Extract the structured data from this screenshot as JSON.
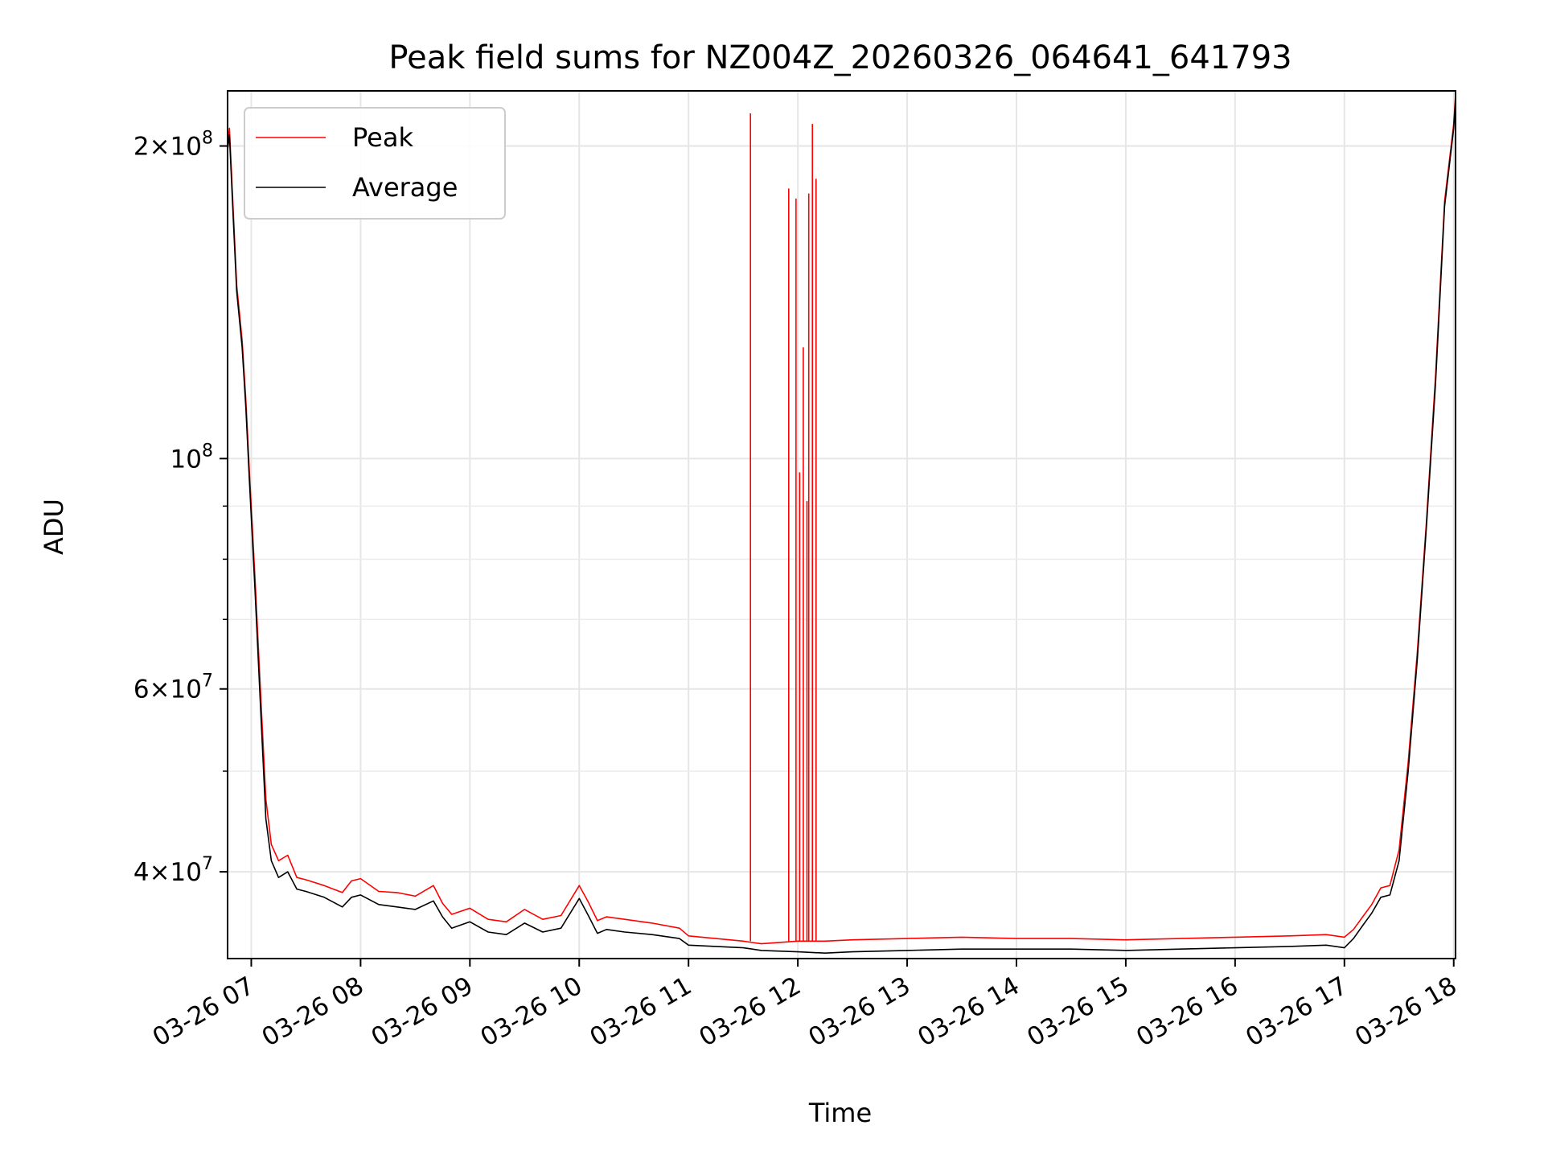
{
  "chart_data": {
    "type": "line",
    "title": "Peak field sums for NZ004Z_20260326_064641_641793",
    "xlabel": "Time",
    "ylabel": "ADU",
    "xlim": [
      "2026-03-26T06:47:00",
      "2026-03-26T18:01:00"
    ],
    "ylim": [
      33000000,
      226000000
    ],
    "yscale": "log",
    "grid": true,
    "legend": "top-left",
    "x_ticks": [
      {
        "t": "2026-03-26T07:00",
        "label": "03-26 07"
      },
      {
        "t": "2026-03-26T08:00",
        "label": "03-26 08"
      },
      {
        "t": "2026-03-26T09:00",
        "label": "03-26 09"
      },
      {
        "t": "2026-03-26T10:00",
        "label": "03-26 10"
      },
      {
        "t": "2026-03-26T11:00",
        "label": "03-26 11"
      },
      {
        "t": "2026-03-26T12:00",
        "label": "03-26 12"
      },
      {
        "t": "2026-03-26T13:00",
        "label": "03-26 13"
      },
      {
        "t": "2026-03-26T14:00",
        "label": "03-26 14"
      },
      {
        "t": "2026-03-26T15:00",
        "label": "03-26 15"
      },
      {
        "t": "2026-03-26T16:00",
        "label": "03-26 16"
      },
      {
        "t": "2026-03-26T17:00",
        "label": "03-26 17"
      },
      {
        "t": "2026-03-26T18:00",
        "label": "03-26 18"
      }
    ],
    "y_major_ticks": [
      {
        "value": 40000000,
        "mant": "4",
        "exp": "7"
      },
      {
        "value": 60000000,
        "mant": "6",
        "exp": "7"
      },
      {
        "value": 100000000,
        "mant": "",
        "exp": "8"
      },
      {
        "value": 200000000,
        "mant": "2",
        "exp": "8"
      }
    ],
    "y_minor_ticks": [
      50000000,
      70000000,
      80000000,
      90000000
    ],
    "series": [
      {
        "name": "Average",
        "color": "#000000",
        "x": [
          "2026-03-26T06:47",
          "2026-03-26T06:48",
          "2026-03-26T06:50",
          "2026-03-26T06:52",
          "2026-03-26T06:55",
          "2026-03-26T06:57",
          "2026-03-26T06:59",
          "2026-03-26T07:02",
          "2026-03-26T07:05",
          "2026-03-26T07:08",
          "2026-03-26T07:11",
          "2026-03-26T07:15",
          "2026-03-26T07:20",
          "2026-03-26T07:25",
          "2026-03-26T07:30",
          "2026-03-26T07:40",
          "2026-03-26T07:50",
          "2026-03-26T07:55",
          "2026-03-26T08:00",
          "2026-03-26T08:10",
          "2026-03-26T08:20",
          "2026-03-26T08:30",
          "2026-03-26T08:40",
          "2026-03-26T08:45",
          "2026-03-26T08:50",
          "2026-03-26T09:00",
          "2026-03-26T09:10",
          "2026-03-26T09:20",
          "2026-03-26T09:30",
          "2026-03-26T09:40",
          "2026-03-26T09:50",
          "2026-03-26T10:00",
          "2026-03-26T10:05",
          "2026-03-26T10:10",
          "2026-03-26T10:15",
          "2026-03-26T10:25",
          "2026-03-26T10:40",
          "2026-03-26T10:55",
          "2026-03-26T11:00",
          "2026-03-26T11:15",
          "2026-03-26T11:30",
          "2026-03-26T11:35",
          "2026-03-26T11:40",
          "2026-03-26T12:00",
          "2026-03-26T12:15",
          "2026-03-26T12:30",
          "2026-03-26T13:00",
          "2026-03-26T13:30",
          "2026-03-26T14:00",
          "2026-03-26T14:30",
          "2026-03-26T15:00",
          "2026-03-26T15:30",
          "2026-03-26T16:00",
          "2026-03-26T16:30",
          "2026-03-26T16:50",
          "2026-03-26T17:00",
          "2026-03-26T17:05",
          "2026-03-26T17:10",
          "2026-03-26T17:15",
          "2026-03-26T17:20",
          "2026-03-26T17:25",
          "2026-03-26T17:30",
          "2026-03-26T17:35",
          "2026-03-26T17:40",
          "2026-03-26T17:45",
          "2026-03-26T17:50",
          "2026-03-26T17:55",
          "2026-03-26T18:00",
          "2026-03-26T18:01"
        ],
        "values": [
          198000000,
          205000000,
          172000000,
          145000000,
          128000000,
          112000000,
          95000000,
          75000000,
          58000000,
          45000000,
          41000000,
          39500000,
          40000000,
          38500000,
          38300000,
          37800000,
          37000000,
          37800000,
          38000000,
          37200000,
          37000000,
          36800000,
          37500000,
          36200000,
          35300000,
          35800000,
          35000000,
          34800000,
          35700000,
          35000000,
          35300000,
          37700000,
          36300000,
          34900000,
          35200000,
          35000000,
          34800000,
          34500000,
          34000000,
          33900000,
          33800000,
          33700000,
          33600000,
          33500000,
          33400000,
          33500000,
          33600000,
          33700000,
          33700000,
          33700000,
          33600000,
          33700000,
          33800000,
          33900000,
          34000000,
          33800000,
          34500000,
          35500000,
          36500000,
          37800000,
          38000000,
          41000000,
          50000000,
          64000000,
          86000000,
          118000000,
          175000000,
          208000000,
          222000000
        ]
      },
      {
        "name": "Peak",
        "color": "#ff0000",
        "x": [
          "2026-03-26T06:47",
          "2026-03-26T06:48",
          "2026-03-26T06:50",
          "2026-03-26T06:52",
          "2026-03-26T06:55",
          "2026-03-26T06:57",
          "2026-03-26T06:59",
          "2026-03-26T07:02",
          "2026-03-26T07:05",
          "2026-03-26T07:08",
          "2026-03-26T07:11",
          "2026-03-26T07:15",
          "2026-03-26T07:20",
          "2026-03-26T07:25",
          "2026-03-26T07:30",
          "2026-03-26T07:40",
          "2026-03-26T07:50",
          "2026-03-26T07:55",
          "2026-03-26T08:00",
          "2026-03-26T08:10",
          "2026-03-26T08:20",
          "2026-03-26T08:30",
          "2026-03-26T08:40",
          "2026-03-26T08:45",
          "2026-03-26T08:50",
          "2026-03-26T09:00",
          "2026-03-26T09:10",
          "2026-03-26T09:20",
          "2026-03-26T09:30",
          "2026-03-26T09:40",
          "2026-03-26T09:50",
          "2026-03-26T10:00",
          "2026-03-26T10:05",
          "2026-03-26T10:10",
          "2026-03-26T10:15",
          "2026-03-26T10:25",
          "2026-03-26T10:40",
          "2026-03-26T10:55",
          "2026-03-26T11:00",
          "2026-03-26T11:15",
          "2026-03-26T11:30",
          "2026-03-26T11:35",
          "2026-03-26T11:40",
          "2026-03-26T12:00",
          "2026-03-26T12:15",
          "2026-03-26T12:30",
          "2026-03-26T13:00",
          "2026-03-26T13:30",
          "2026-03-26T14:00",
          "2026-03-26T14:30",
          "2026-03-26T15:00",
          "2026-03-26T15:30",
          "2026-03-26T16:00",
          "2026-03-26T16:30",
          "2026-03-26T16:50",
          "2026-03-26T17:00",
          "2026-03-26T17:05",
          "2026-03-26T17:10",
          "2026-03-26T17:15",
          "2026-03-26T17:20",
          "2026-03-26T17:25",
          "2026-03-26T17:30",
          "2026-03-26T17:35",
          "2026-03-26T17:40",
          "2026-03-26T17:45",
          "2026-03-26T17:50",
          "2026-03-26T17:55",
          "2026-03-26T18:00",
          "2026-03-26T18:01"
        ],
        "values": [
          200000000,
          208000000,
          175000000,
          147000000,
          130000000,
          114000000,
          97000000,
          77000000,
          60000000,
          47000000,
          42500000,
          41000000,
          41500000,
          39500000,
          39300000,
          38800000,
          38200000,
          39200000,
          39400000,
          38300000,
          38200000,
          37900000,
          38800000,
          37300000,
          36400000,
          36900000,
          36000000,
          35800000,
          36800000,
          36000000,
          36300000,
          38800000,
          37400000,
          35900000,
          36200000,
          36000000,
          35700000,
          35300000,
          34700000,
          34500000,
          34300000,
          34200000,
          34100000,
          34300000,
          34300000,
          34400000,
          34500000,
          34600000,
          34500000,
          34500000,
          34400000,
          34500000,
          34600000,
          34700000,
          34800000,
          34600000,
          35200000,
          36200000,
          37200000,
          38600000,
          38800000,
          42000000,
          51000000,
          65000000,
          87000000,
          120000000,
          177000000,
          210000000,
          224000000
        ]
      }
    ],
    "peak_spikes": [
      {
        "t": "2026-03-26T11:34",
        "value": 215000000
      },
      {
        "t": "2026-03-26T11:55",
        "value": 182000000
      },
      {
        "t": "2026-03-26T11:59",
        "value": 178000000
      },
      {
        "t": "2026-03-26T12:01",
        "value": 97000000
      },
      {
        "t": "2026-03-26T12:03",
        "value": 128000000
      },
      {
        "t": "2026-03-26T12:05",
        "value": 91000000
      },
      {
        "t": "2026-03-26T12:06",
        "value": 180000000
      },
      {
        "t": "2026-03-26T12:08",
        "value": 210000000
      },
      {
        "t": "2026-03-26T12:10",
        "value": 186000000
      }
    ]
  }
}
